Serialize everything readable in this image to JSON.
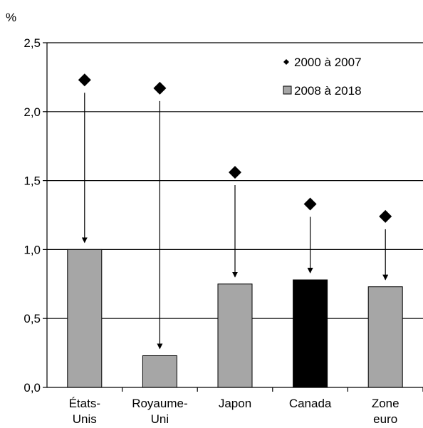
{
  "chart_data": {
    "type": "bar",
    "ylabel": "%",
    "ylim": [
      0,
      2.5
    ],
    "ytick_step": 0.5,
    "yticks": [
      "0,0",
      "0,5",
      "1,0",
      "1,5",
      "2,0",
      "2,5"
    ],
    "grid": true,
    "legend_position": "top-right",
    "categories": [
      [
        "États-",
        "Unis"
      ],
      [
        "Royaume-",
        "Uni"
      ],
      [
        "Japon"
      ],
      [
        "Canada"
      ],
      [
        "Zone",
        "euro"
      ]
    ],
    "series": [
      {
        "name": "2000 à 2007",
        "marker": "diamond",
        "values": [
          2.23,
          2.17,
          1.56,
          1.33,
          1.24
        ]
      },
      {
        "name": "2008 à 2018",
        "marker": "bar",
        "values": [
          1.0,
          0.23,
          0.75,
          0.78,
          0.73
        ],
        "colors": [
          "#a6a6a6",
          "#a6a6a6",
          "#a6a6a6",
          "#000000",
          "#a6a6a6"
        ]
      }
    ]
  }
}
